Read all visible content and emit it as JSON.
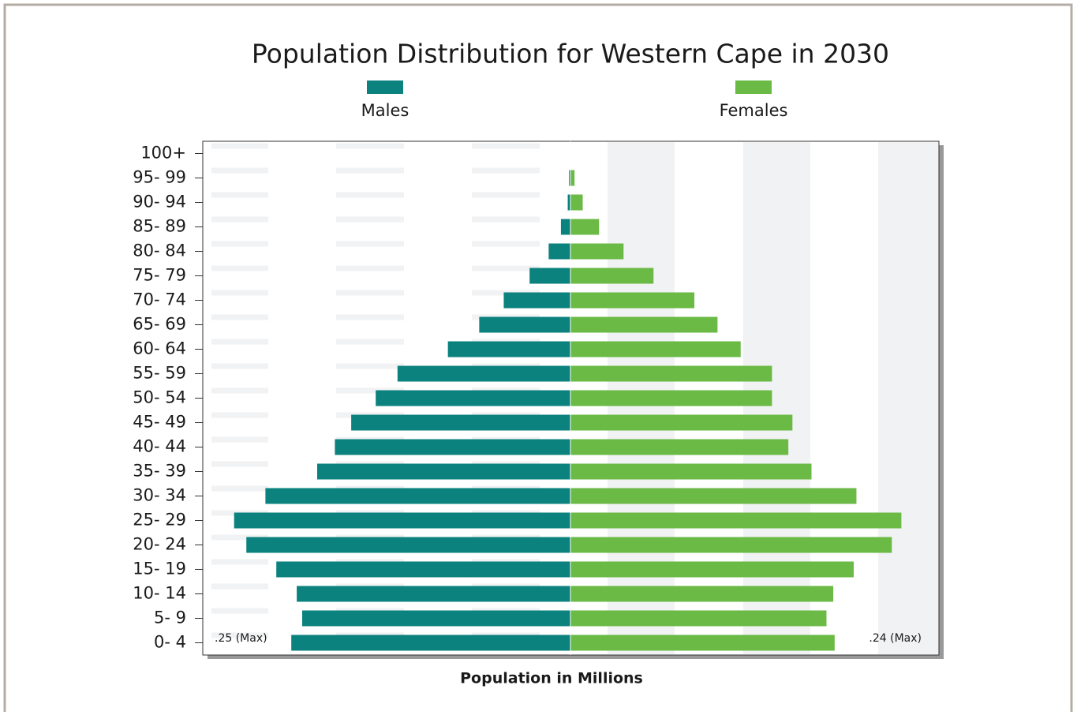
{
  "chart_data": {
    "type": "pyramid",
    "title": "Population Distribution for Western Cape in 2030",
    "xlabel": "Population in Millions",
    "categories": [
      "0- 4",
      "5- 9",
      "10- 14",
      "15- 19",
      "20- 24",
      "25- 29",
      "30- 34",
      "35- 39",
      "40- 44",
      "45- 49",
      "50- 54",
      "55- 59",
      "60- 64",
      "65- 69",
      "70- 74",
      "75- 79",
      "80- 84",
      "85- 89",
      "90- 94",
      "95- 99",
      "100+"
    ],
    "series": [
      {
        "name": "Males",
        "color": "#0b827e",
        "side": "left",
        "values": [
          0.205,
          0.197,
          0.201,
          0.216,
          0.238,
          0.247,
          0.224,
          0.186,
          0.173,
          0.161,
          0.143,
          0.127,
          0.09,
          0.067,
          0.049,
          0.03,
          0.016,
          0.007,
          0.002,
          0.001,
          0
        ]
      },
      {
        "name": "Females",
        "color": "#6aba45",
        "side": "right",
        "values": [
          0.194,
          0.188,
          0.193,
          0.208,
          0.236,
          0.243,
          0.21,
          0.177,
          0.16,
          0.163,
          0.148,
          0.148,
          0.125,
          0.108,
          0.091,
          0.061,
          0.039,
          0.021,
          0.009,
          0.003,
          0
        ]
      }
    ],
    "xlim": [
      0,
      0.27
    ],
    "annotations": [
      ".25 (Max)",
      ".24 (Max)"
    ]
  }
}
